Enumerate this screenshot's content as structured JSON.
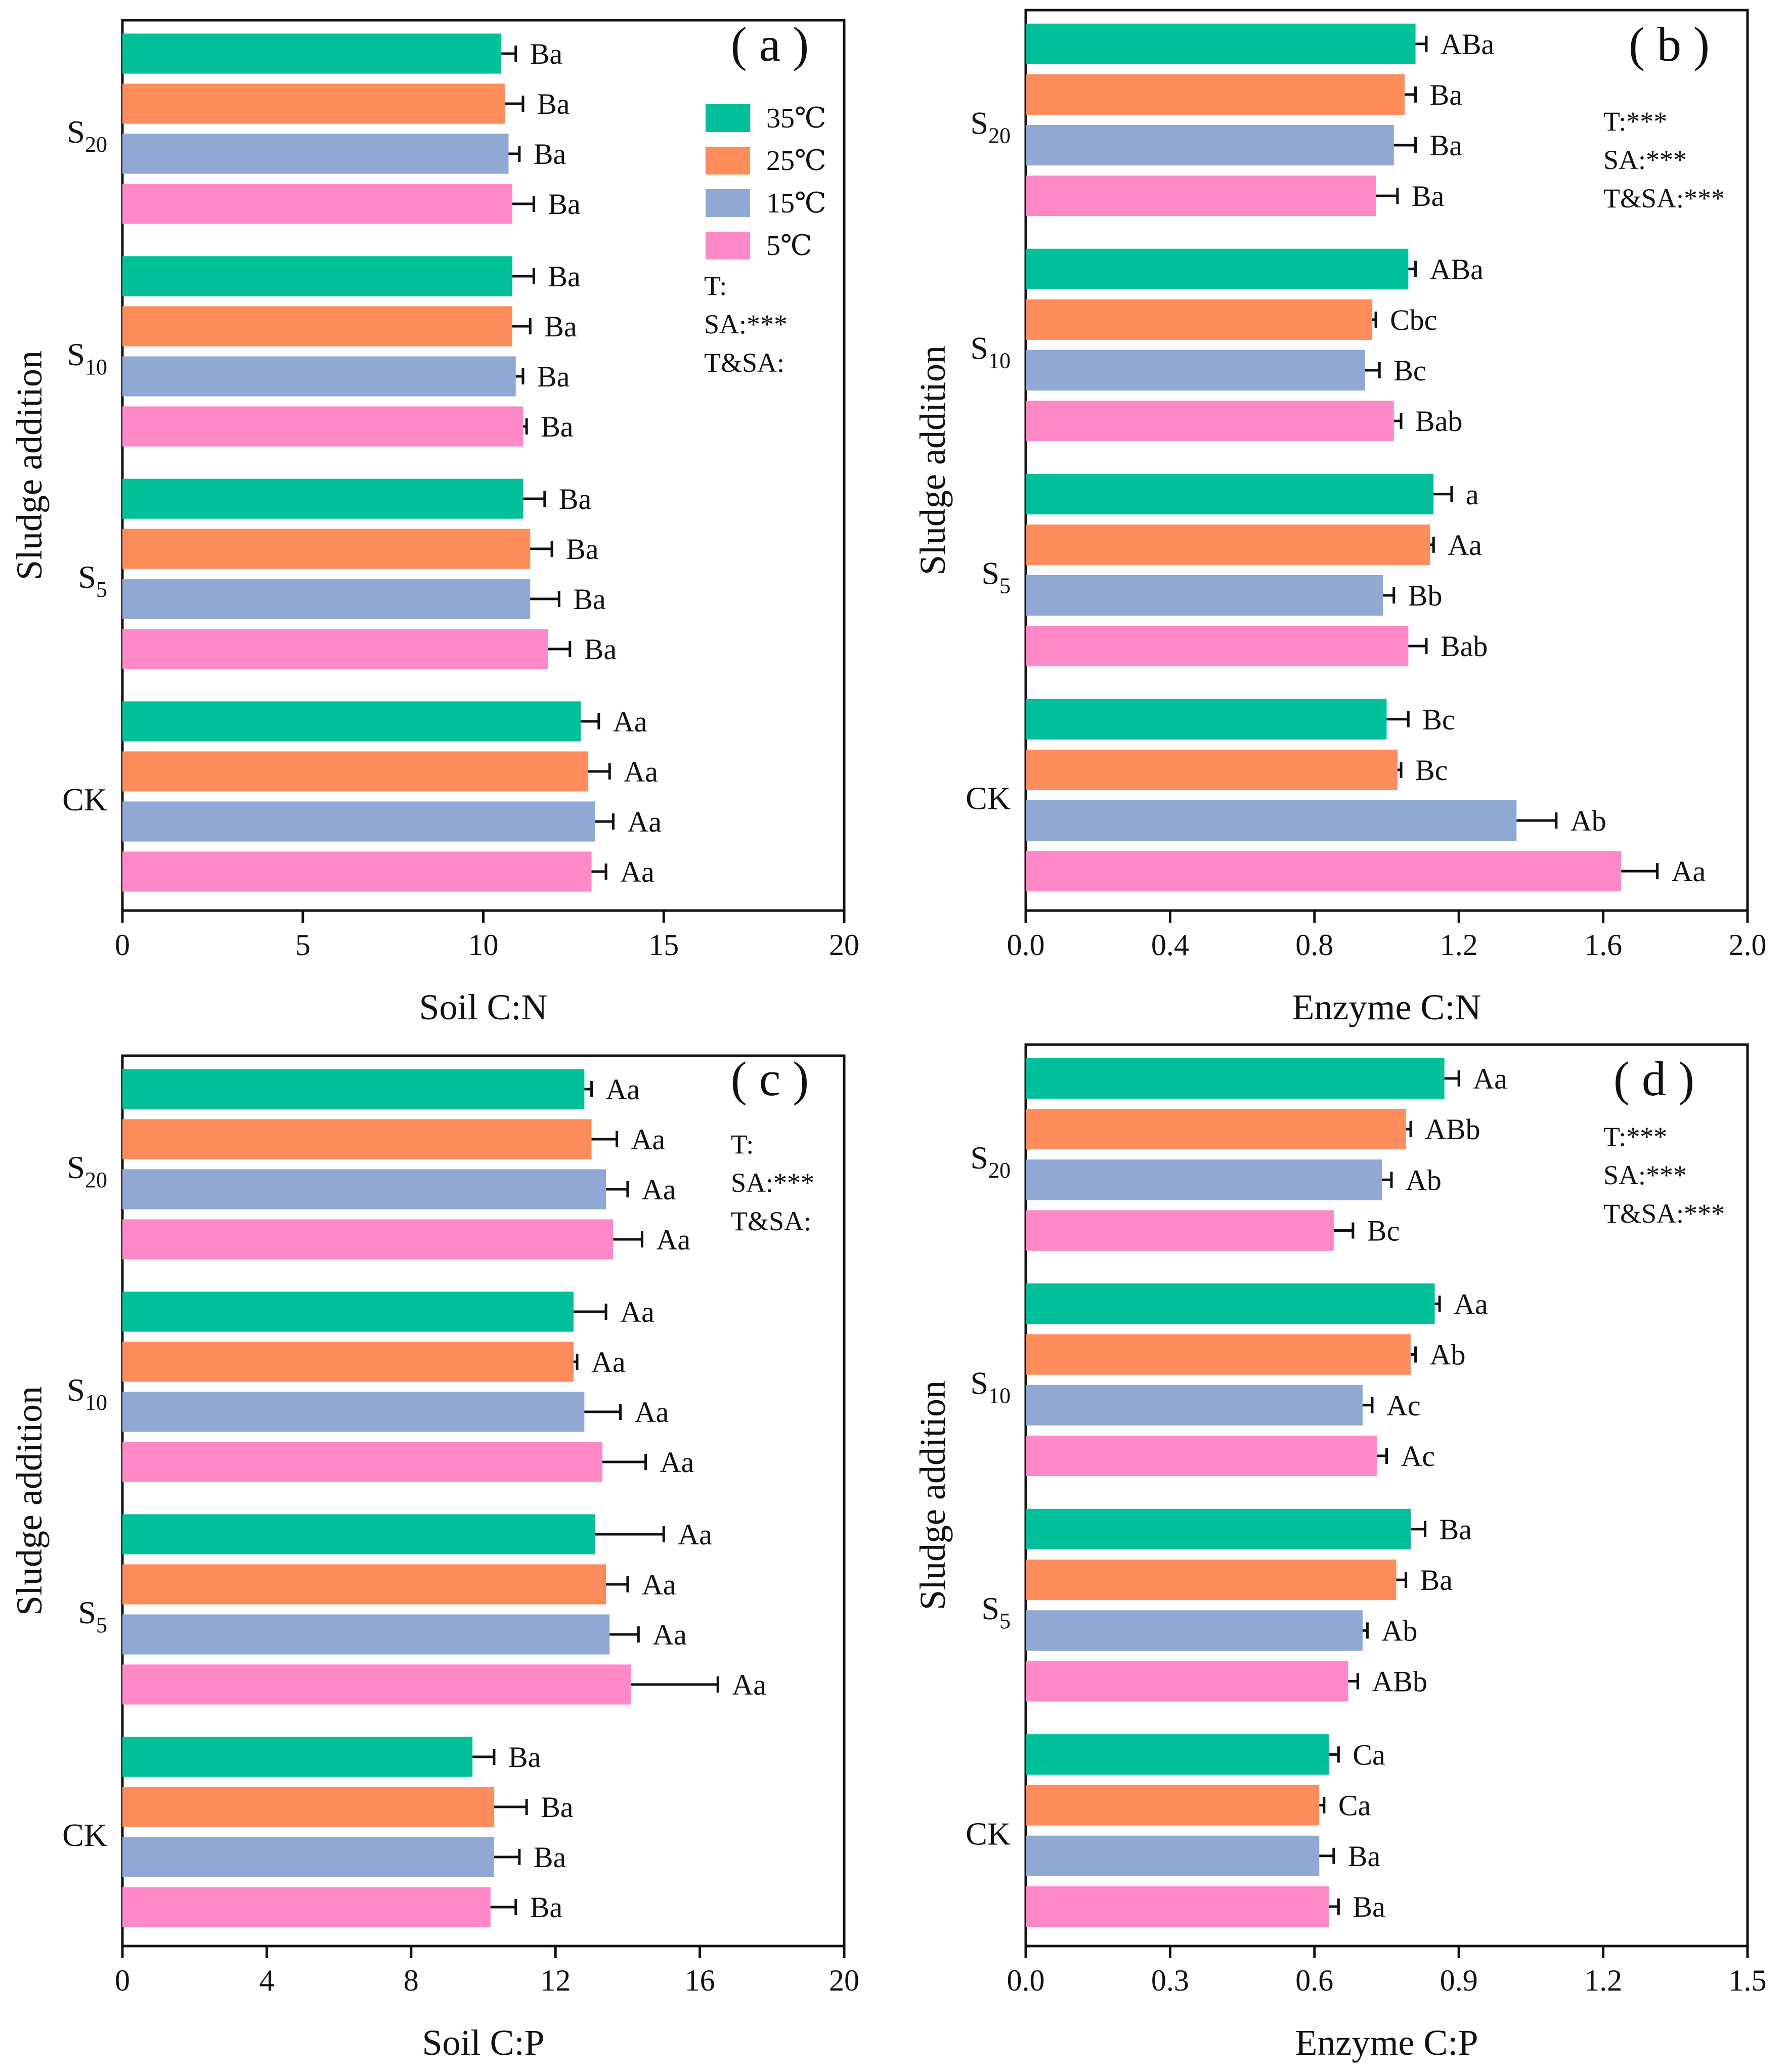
{
  "colors": {
    "35C": "#00c09a",
    "25C": "#ff8c5a",
    "15C": "#8fa9d4",
    "5C": "#ff88c6"
  },
  "legend": [
    {
      "label": "35℃",
      "color_key": "35C"
    },
    {
      "label": "25℃",
      "color_key": "25C"
    },
    {
      "label": "15℃",
      "color_key": "15C"
    },
    {
      "label": "5℃",
      "color_key": "5C"
    }
  ],
  "y_axis_title": "Sludge addition",
  "chart_data": [
    {
      "id": "a",
      "type": "bar",
      "orientation": "horizontal",
      "panel_label": "( a )",
      "xlabel": "Soil C:N",
      "xlim": [
        0,
        20
      ],
      "xticks": [
        0,
        5,
        10,
        15,
        20
      ],
      "categories": [
        {
          "main": "S",
          "sub": "20"
        },
        {
          "main": "S",
          "sub": "10"
        },
        {
          "main": "S",
          "sub": "5"
        },
        {
          "main": "CK",
          "sub": ""
        }
      ],
      "series": [
        {
          "name": "35℃",
          "color_key": "35C",
          "values": [
            10.5,
            10.8,
            11.1,
            12.7
          ],
          "errors": [
            0.4,
            0.6,
            0.6,
            0.5
          ],
          "labels": [
            "Ba",
            "Ba",
            "Ba",
            "Aa"
          ]
        },
        {
          "name": "25℃",
          "color_key": "25C",
          "values": [
            10.6,
            10.8,
            11.3,
            12.9
          ],
          "errors": [
            0.5,
            0.5,
            0.6,
            0.6
          ],
          "labels": [
            "Ba",
            "Ba",
            "Ba",
            "Aa"
          ]
        },
        {
          "name": "15℃",
          "color_key": "15C",
          "values": [
            10.7,
            10.9,
            11.3,
            13.1
          ],
          "errors": [
            0.3,
            0.2,
            0.8,
            0.5
          ],
          "labels": [
            "Ba",
            "Ba",
            "Ba",
            "Aa"
          ]
        },
        {
          "name": "5℃",
          "color_key": "5C",
          "values": [
            10.8,
            11.1,
            11.8,
            13.0
          ],
          "errors": [
            0.6,
            0.1,
            0.6,
            0.4
          ],
          "labels": [
            "Ba",
            "Ba",
            "Ba",
            "Aa"
          ]
        }
      ],
      "stats": [
        "T:",
        "SA:***",
        "T&SA:"
      ],
      "show_legend": true
    },
    {
      "id": "b",
      "type": "bar",
      "orientation": "horizontal",
      "panel_label": "( b )",
      "xlabel": "Enzyme C:N",
      "xlim": [
        0,
        2.0
      ],
      "xticks": [
        0.0,
        0.4,
        0.8,
        1.2,
        1.6,
        2.0
      ],
      "tick_decimals": 1,
      "categories": [
        {
          "main": "S",
          "sub": "20"
        },
        {
          "main": "S",
          "sub": "10"
        },
        {
          "main": "S",
          "sub": "5"
        },
        {
          "main": "CK",
          "sub": ""
        }
      ],
      "series": [
        {
          "name": "35℃",
          "color_key": "35C",
          "values": [
            1.08,
            1.06,
            1.13,
            1.0
          ],
          "errors": [
            0.03,
            0.02,
            0.05,
            0.06
          ],
          "labels": [
            "ABa",
            "ABa",
            "a",
            "Bc"
          ]
        },
        {
          "name": "25℃",
          "color_key": "25C",
          "values": [
            1.05,
            0.96,
            1.12,
            1.03
          ],
          "errors": [
            0.03,
            0.01,
            0.01,
            0.01
          ],
          "labels": [
            "Ba",
            "Cbc",
            "Aa",
            "Bc"
          ]
        },
        {
          "name": "15℃",
          "color_key": "15C",
          "values": [
            1.02,
            0.94,
            0.99,
            1.36
          ],
          "errors": [
            0.06,
            0.04,
            0.03,
            0.11
          ],
          "labels": [
            "Ba",
            "Bc",
            "Bb",
            "Ab"
          ]
        },
        {
          "name": "5℃",
          "color_key": "5C",
          "values": [
            0.97,
            1.02,
            1.06,
            1.65
          ],
          "errors": [
            0.06,
            0.02,
            0.05,
            0.1
          ],
          "labels": [
            "Ba",
            "Bab",
            "Bab",
            "Aa"
          ]
        }
      ],
      "stats": [
        "T:***",
        "SA:***",
        "T&SA:***"
      ],
      "show_legend": false
    },
    {
      "id": "c",
      "type": "bar",
      "orientation": "horizontal",
      "panel_label": "( c )",
      "xlabel": "Soil C:P",
      "xlim": [
        0,
        20
      ],
      "xticks": [
        0,
        4,
        8,
        12,
        16,
        20
      ],
      "categories": [
        {
          "main": "S",
          "sub": "20"
        },
        {
          "main": "S",
          "sub": "10"
        },
        {
          "main": "S",
          "sub": "5"
        },
        {
          "main": "CK",
          "sub": ""
        }
      ],
      "series": [
        {
          "name": "35℃",
          "color_key": "35C",
          "values": [
            12.8,
            12.5,
            13.1,
            9.7
          ],
          "errors": [
            0.2,
            0.9,
            1.9,
            0.6
          ],
          "labels": [
            "Aa",
            "Aa",
            "Aa",
            "Ba"
          ]
        },
        {
          "name": "25℃",
          "color_key": "25C",
          "values": [
            13.0,
            12.5,
            13.4,
            10.3
          ],
          "errors": [
            0.7,
            0.1,
            0.6,
            0.9
          ],
          "labels": [
            "Aa",
            "Aa",
            "Aa",
            "Ba"
          ]
        },
        {
          "name": "15℃",
          "color_key": "15C",
          "values": [
            13.4,
            12.8,
            13.5,
            10.3
          ],
          "errors": [
            0.6,
            1.0,
            0.8,
            0.7
          ],
          "labels": [
            "Aa",
            "Aa",
            "Aa",
            "Ba"
          ]
        },
        {
          "name": "5℃",
          "color_key": "5C",
          "values": [
            13.6,
            13.3,
            14.1,
            10.2
          ],
          "errors": [
            0.8,
            1.2,
            2.4,
            0.7
          ],
          "labels": [
            "Aa",
            "Aa",
            "Aa",
            "Ba"
          ]
        }
      ],
      "stats": [
        "T:",
        "SA:***",
        "T&SA:"
      ],
      "show_legend": false
    },
    {
      "id": "d",
      "type": "bar",
      "orientation": "horizontal",
      "panel_label": "( d )",
      "xlabel": "Enzyme C:P",
      "xlim": [
        0,
        1.5
      ],
      "xticks": [
        0.0,
        0.3,
        0.6,
        0.9,
        1.2,
        1.5
      ],
      "tick_decimals": 1,
      "categories": [
        {
          "main": "S",
          "sub": "20"
        },
        {
          "main": "S",
          "sub": "10"
        },
        {
          "main": "S",
          "sub": "5"
        },
        {
          "main": "CK",
          "sub": ""
        }
      ],
      "series": [
        {
          "name": "35℃",
          "color_key": "35C",
          "values": [
            0.87,
            0.85,
            0.8,
            0.63
          ],
          "errors": [
            0.03,
            0.01,
            0.03,
            0.02
          ],
          "labels": [
            "Aa",
            "Aa",
            "Ba",
            "Ca"
          ]
        },
        {
          "name": "25℃",
          "color_key": "25C",
          "values": [
            0.79,
            0.8,
            0.77,
            0.61
          ],
          "errors": [
            0.01,
            0.01,
            0.02,
            0.01
          ],
          "labels": [
            "ABb",
            "Ab",
            "Ba",
            "Ca"
          ]
        },
        {
          "name": "15℃",
          "color_key": "15C",
          "values": [
            0.74,
            0.7,
            0.7,
            0.61
          ],
          "errors": [
            0.02,
            0.02,
            0.01,
            0.03
          ],
          "labels": [
            "Ab",
            "Ac",
            "Ab",
            "Ba"
          ]
        },
        {
          "name": "5℃",
          "color_key": "5C",
          "values": [
            0.64,
            0.73,
            0.67,
            0.63
          ],
          "errors": [
            0.04,
            0.02,
            0.02,
            0.02
          ],
          "labels": [
            "Bc",
            "Ac",
            "ABb",
            "Ba"
          ]
        }
      ],
      "stats": [
        "T:***",
        "SA:***",
        "T&SA:***"
      ],
      "show_legend": false
    }
  ]
}
